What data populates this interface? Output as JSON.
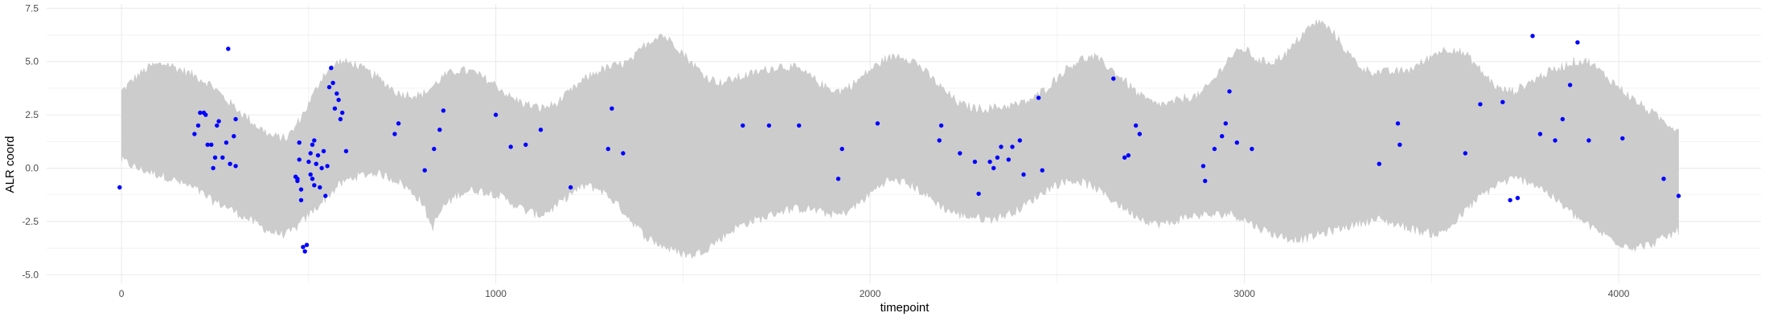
{
  "chart_data": {
    "type": "scatter",
    "title": "",
    "xlabel": "timepoint",
    "ylabel": "ALR coord",
    "xlim": [
      -200,
      4380
    ],
    "ylim": [
      -5.4,
      7.7
    ],
    "x_ticks": [
      0,
      1000,
      2000,
      3000,
      4000
    ],
    "y_ticks": [
      -5.0,
      -2.5,
      0.0,
      2.5,
      5.0,
      7.5
    ],
    "x_tick_labels": [
      "0",
      "1000",
      "2000",
      "3000",
      "4000"
    ],
    "y_tick_labels": [
      "-5.0",
      "-2.5",
      "0.0",
      "2.5",
      "5.0",
      "7.5"
    ],
    "grid": true,
    "colors": {
      "band": "#cccccc",
      "points": "#0000ff",
      "grid": "#ebebeb"
    },
    "band": {
      "description": "grey ribbon of simulated trajectories",
      "x": [
        0,
        40,
        80,
        120,
        160,
        200,
        240,
        280,
        320,
        360,
        400,
        440,
        460,
        500,
        540,
        580,
        620,
        680,
        740,
        800,
        830,
        860,
        900,
        940,
        1000,
        1040,
        1080,
        1120,
        1160,
        1200,
        1240,
        1280,
        1320,
        1360,
        1400,
        1440,
        1480,
        1520,
        1560,
        1600,
        1640,
        1680,
        1720,
        1760,
        1800,
        1840,
        1880,
        1920,
        1960,
        2000,
        2040,
        2080,
        2120,
        2160,
        2200,
        2240,
        2280,
        2320,
        2360,
        2400,
        2440,
        2480,
        2520,
        2560,
        2600,
        2640,
        2680,
        2720,
        2760,
        2800,
        2840,
        2880,
        2920,
        2960,
        3000,
        3040,
        3080,
        3120,
        3160,
        3200,
        3240,
        3280,
        3320,
        3360,
        3400,
        3440,
        3480,
        3520,
        3560,
        3600,
        3640,
        3680,
        3720,
        3760,
        3800,
        3840,
        3880,
        3920,
        3960,
        4000,
        4040,
        4080,
        4120,
        4160
      ],
      "upper": [
        3.6,
        4.3,
        4.8,
        4.9,
        4.6,
        4.3,
        3.9,
        3.2,
        2.6,
        2.0,
        1.5,
        1.4,
        1.8,
        3.0,
        4.4,
        5.0,
        4.9,
        4.3,
        3.5,
        3.4,
        3.8,
        4.3,
        4.6,
        4.5,
        3.9,
        3.3,
        3.0,
        2.8,
        3.0,
        3.6,
        4.2,
        4.6,
        4.8,
        5.0,
        5.8,
        6.3,
        5.8,
        5.0,
        4.3,
        4.0,
        4.2,
        4.4,
        4.6,
        4.8,
        4.7,
        4.3,
        3.8,
        3.6,
        4.0,
        4.6,
        5.1,
        5.3,
        5.0,
        4.3,
        3.6,
        3.0,
        2.8,
        2.8,
        2.9,
        3.0,
        3.3,
        3.9,
        4.6,
        5.1,
        5.2,
        4.7,
        4.1,
        3.4,
        3.0,
        3.0,
        3.3,
        3.4,
        4.2,
        5.2,
        5.6,
        5.0,
        5.0,
        5.5,
        6.4,
        6.9,
        6.3,
        5.3,
        4.6,
        4.5,
        4.5,
        4.6,
        5.0,
        5.5,
        5.6,
        5.2,
        4.4,
        3.7,
        3.6,
        4.0,
        4.4,
        4.7,
        5.0,
        5.0,
        4.4,
        3.8,
        3.2,
        2.7,
        2.2,
        1.8
      ],
      "lower": [
        0.4,
        0.0,
        -0.2,
        -0.4,
        -0.7,
        -1.0,
        -1.5,
        -1.8,
        -2.2,
        -2.6,
        -3.0,
        -3.1,
        -2.9,
        -2.2,
        -1.5,
        -0.8,
        -0.4,
        -0.2,
        -0.6,
        -1.5,
        -2.8,
        -1.8,
        -1.2,
        -1.0,
        -1.2,
        -1.6,
        -2.0,
        -2.2,
        -1.8,
        -1.2,
        -0.8,
        -1.0,
        -1.6,
        -2.4,
        -3.2,
        -3.6,
        -3.9,
        -4.1,
        -3.8,
        -3.3,
        -2.8,
        -2.5,
        -2.3,
        -2.0,
        -1.9,
        -1.9,
        -2.1,
        -2.2,
        -1.8,
        -1.2,
        -0.6,
        -0.6,
        -0.9,
        -1.4,
        -1.9,
        -2.2,
        -2.3,
        -2.4,
        -2.2,
        -1.9,
        -1.4,
        -0.9,
        -0.6,
        -0.6,
        -0.9,
        -1.4,
        -1.9,
        -2.3,
        -2.6,
        -2.6,
        -2.3,
        -2.2,
        -2.2,
        -2.1,
        -2.4,
        -2.8,
        -3.1,
        -3.3,
        -3.3,
        -3.1,
        -2.9,
        -2.7,
        -2.5,
        -2.4,
        -2.6,
        -2.8,
        -3.0,
        -3.1,
        -2.6,
        -1.8,
        -1.2,
        -0.7,
        -0.5,
        -0.6,
        -1.0,
        -1.6,
        -2.2,
        -2.7,
        -3.1,
        -3.5,
        -3.7,
        -3.6,
        -3.3,
        -2.9
      ]
    },
    "series": [
      {
        "x": [
          -5,
          195,
          205,
          210,
          220,
          225,
          230,
          240,
          245,
          250,
          255,
          260,
          270,
          280,
          285,
          290,
          300,
          305,
          305,
          465,
          470,
          470,
          475,
          475,
          480,
          480,
          485,
          490,
          495,
          500,
          505,
          505,
          510,
          510,
          515,
          515,
          520,
          525,
          530,
          535,
          540,
          545,
          550,
          555,
          560,
          565,
          570,
          575,
          580,
          585,
          590,
          600,
          730,
          740,
          810,
          835,
          850,
          860,
          1000,
          1040,
          1080,
          1120,
          1200,
          1300,
          1310,
          1340,
          1660,
          1730,
          1810,
          1915,
          1925,
          2020,
          2185,
          2190,
          2240,
          2280,
          2290,
          2320,
          2330,
          2340,
          2350,
          2370,
          2380,
          2400,
          2410,
          2450,
          2460,
          2650,
          2680,
          2690,
          2710,
          2720,
          2890,
          2895,
          2920,
          2940,
          2950,
          2960,
          2980,
          3020,
          3360,
          3410,
          3415,
          3590,
          3630,
          3690,
          3710,
          3730,
          3770,
          3790,
          3830,
          3850,
          3870,
          3890,
          3920,
          4010,
          4120,
          4160
        ],
        "y": [
          -0.9,
          1.6,
          2.0,
          2.6,
          2.6,
          2.5,
          1.1,
          1.1,
          0.0,
          0.5,
          2.0,
          2.2,
          0.5,
          1.2,
          5.6,
          0.2,
          1.5,
          2.3,
          0.1,
          -0.4,
          -0.6,
          -0.5,
          0.4,
          1.2,
          -1.0,
          -1.5,
          -3.7,
          -3.9,
          -3.6,
          0.3,
          -0.3,
          0.7,
          -0.5,
          1.1,
          -0.8,
          1.3,
          0.2,
          0.6,
          -0.9,
          0.0,
          0.8,
          -1.3,
          0.1,
          3.8,
          4.7,
          4.0,
          2.8,
          3.5,
          3.2,
          2.3,
          2.6,
          0.8,
          1.6,
          2.1,
          -0.1,
          0.9,
          1.8,
          2.7,
          2.5,
          1.0,
          1.1,
          1.8,
          -0.9,
          0.9,
          2.8,
          0.7,
          2.0,
          2.0,
          2.0,
          -0.5,
          0.9,
          2.1,
          1.3,
          2.0,
          0.7,
          0.3,
          -1.2,
          0.3,
          0.0,
          0.5,
          1.0,
          0.4,
          1.0,
          1.3,
          -0.3,
          3.3,
          -0.1,
          4.2,
          0.5,
          0.6,
          2.0,
          1.6,
          0.1,
          -0.6,
          0.9,
          1.5,
          2.1,
          3.6,
          1.2,
          0.9,
          0.2,
          2.1,
          1.1,
          0.7,
          3.0,
          3.1,
          -1.5,
          -1.4,
          6.2,
          1.6,
          1.3,
          2.3,
          3.9,
          5.9,
          1.3,
          1.4,
          -0.5,
          -1.3
        ]
      }
    ]
  }
}
